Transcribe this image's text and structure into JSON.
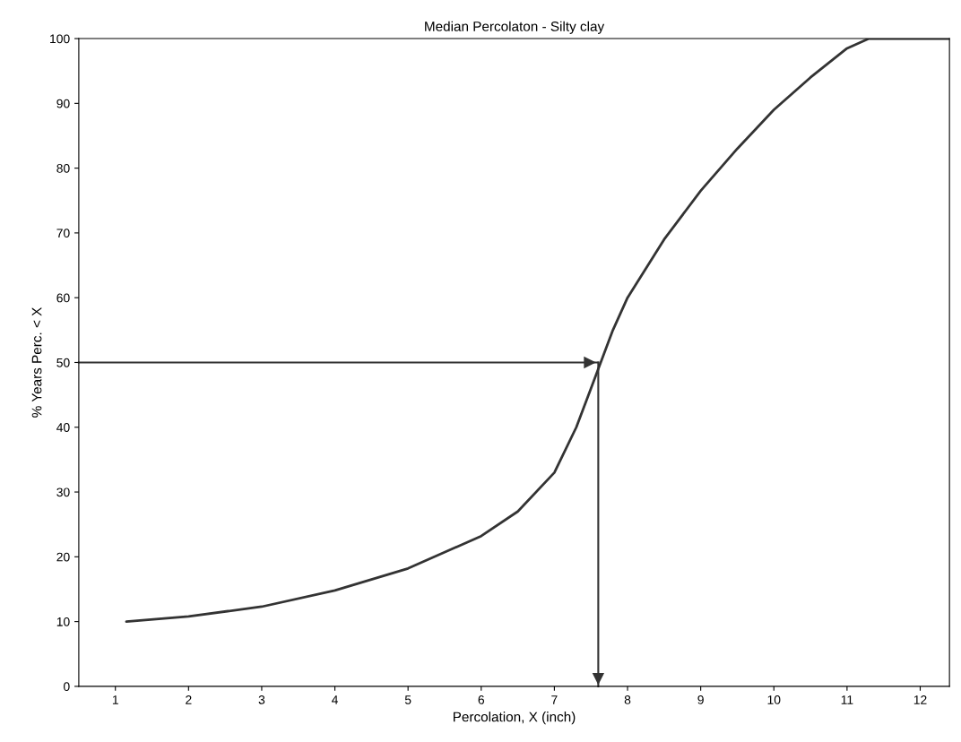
{
  "chart_data": {
    "type": "line",
    "title": "Median Percolaton - Silty clay",
    "xlabel": "Percolation, X (inch)",
    "ylabel": "% Years Perc. < X",
    "x": [
      1.15,
      2,
      3,
      4,
      5,
      6,
      6.5,
      7,
      7.3,
      7.5,
      7.6,
      7.8,
      8,
      8.5,
      9,
      9.5,
      10,
      10.5,
      11,
      11.3,
      12.4
    ],
    "values": [
      10,
      10.8,
      12.3,
      14.8,
      18.2,
      23.2,
      27,
      33,
      40,
      46,
      49,
      55,
      60,
      69,
      76.5,
      83,
      89,
      94,
      98.5,
      100,
      100
    ],
    "color": "#333333",
    "xlim": [
      0.5,
      12.4
    ],
    "xticks": [
      1,
      2,
      3,
      4,
      5,
      6,
      7,
      8,
      9,
      10,
      11,
      12
    ],
    "ylim": [
      0,
      100
    ],
    "yticks": [
      0,
      10,
      20,
      30,
      40,
      50,
      60,
      70,
      80,
      90,
      100
    ],
    "ref_lines": [
      {
        "axis": "y",
        "value": 50,
        "color": "#333333"
      },
      {
        "axis": "x",
        "value": 7.6,
        "color": "#333333"
      }
    ],
    "grid": false
  }
}
